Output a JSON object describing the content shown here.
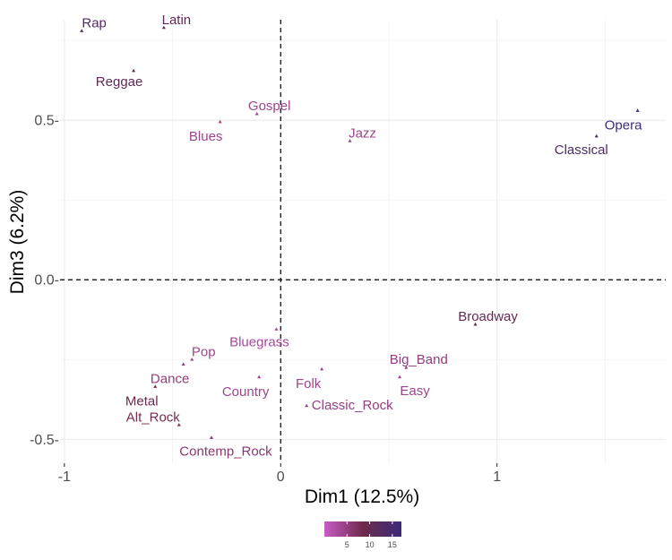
{
  "chart_data": {
    "type": "scatter",
    "title": "",
    "xlabel": "Dim1 (12.5%)",
    "ylabel": "Dim3 (6.2%)",
    "xlim": [
      -1.02,
      1.78
    ],
    "ylim": [
      -0.575,
      0.815
    ],
    "x_ticks": [
      -1,
      0,
      1
    ],
    "x_tick_labels": [
      "-1",
      "0",
      "1"
    ],
    "y_ticks": [
      -0.5,
      0.0,
      0.5
    ],
    "y_tick_labels": [
      "-0.5-",
      "0.0-",
      "0.5-"
    ],
    "grid": true,
    "reference_lines": {
      "x": 0,
      "y": 0,
      "style": "dashed"
    },
    "color_scale": {
      "low_color": "#c85bc8",
      "mid_color": "#6e2a4a",
      "high_color": "#3b2a7a",
      "min": 0,
      "max": 17,
      "ticks": [
        5,
        10,
        15
      ],
      "tick_labels": [
        "5",
        "10",
        "15"
      ]
    },
    "points": [
      {
        "label": "Rap",
        "x": -0.92,
        "y": 0.78,
        "color": 13
      },
      {
        "label": "Latin",
        "x": -0.54,
        "y": 0.79,
        "color": 11
      },
      {
        "label": "Reggae",
        "x": -0.68,
        "y": 0.655,
        "color": 11
      },
      {
        "label": "Gospel",
        "x": -0.11,
        "y": 0.52,
        "color": 4
      },
      {
        "label": "Blues",
        "x": -0.28,
        "y": 0.495,
        "color": 4
      },
      {
        "label": "Jazz",
        "x": 0.32,
        "y": 0.435,
        "color": 4
      },
      {
        "label": "Opera",
        "x": 1.65,
        "y": 0.53,
        "color": 16
      },
      {
        "label": "Classical",
        "x": 1.46,
        "y": 0.45,
        "color": 14
      },
      {
        "label": "Broadway",
        "x": 0.9,
        "y": -0.14,
        "color": 10
      },
      {
        "label": "Bluegrass",
        "x": -0.02,
        "y": -0.155,
        "color": 3
      },
      {
        "label": "Pop",
        "x": -0.41,
        "y": -0.25,
        "color": 4
      },
      {
        "label": "Dance",
        "x": -0.45,
        "y": -0.265,
        "color": 5
      },
      {
        "label": "Big_Band",
        "x": 0.58,
        "y": -0.275,
        "color": 5
      },
      {
        "label": "Folk",
        "x": 0.19,
        "y": -0.28,
        "color": 4
      },
      {
        "label": "Easy",
        "x": 0.55,
        "y": -0.305,
        "color": 4
      },
      {
        "label": "Country",
        "x": -0.1,
        "y": -0.305,
        "color": 4
      },
      {
        "label": "Metal",
        "x": -0.58,
        "y": -0.335,
        "color": 9
      },
      {
        "label": "Classic_Rock",
        "x": 0.12,
        "y": -0.395,
        "color": 5
      },
      {
        "label": "Alt_Rock",
        "x": -0.47,
        "y": -0.455,
        "color": 8
      },
      {
        "label": "Contemp_Rock",
        "x": -0.32,
        "y": -0.495,
        "color": 6
      }
    ]
  }
}
